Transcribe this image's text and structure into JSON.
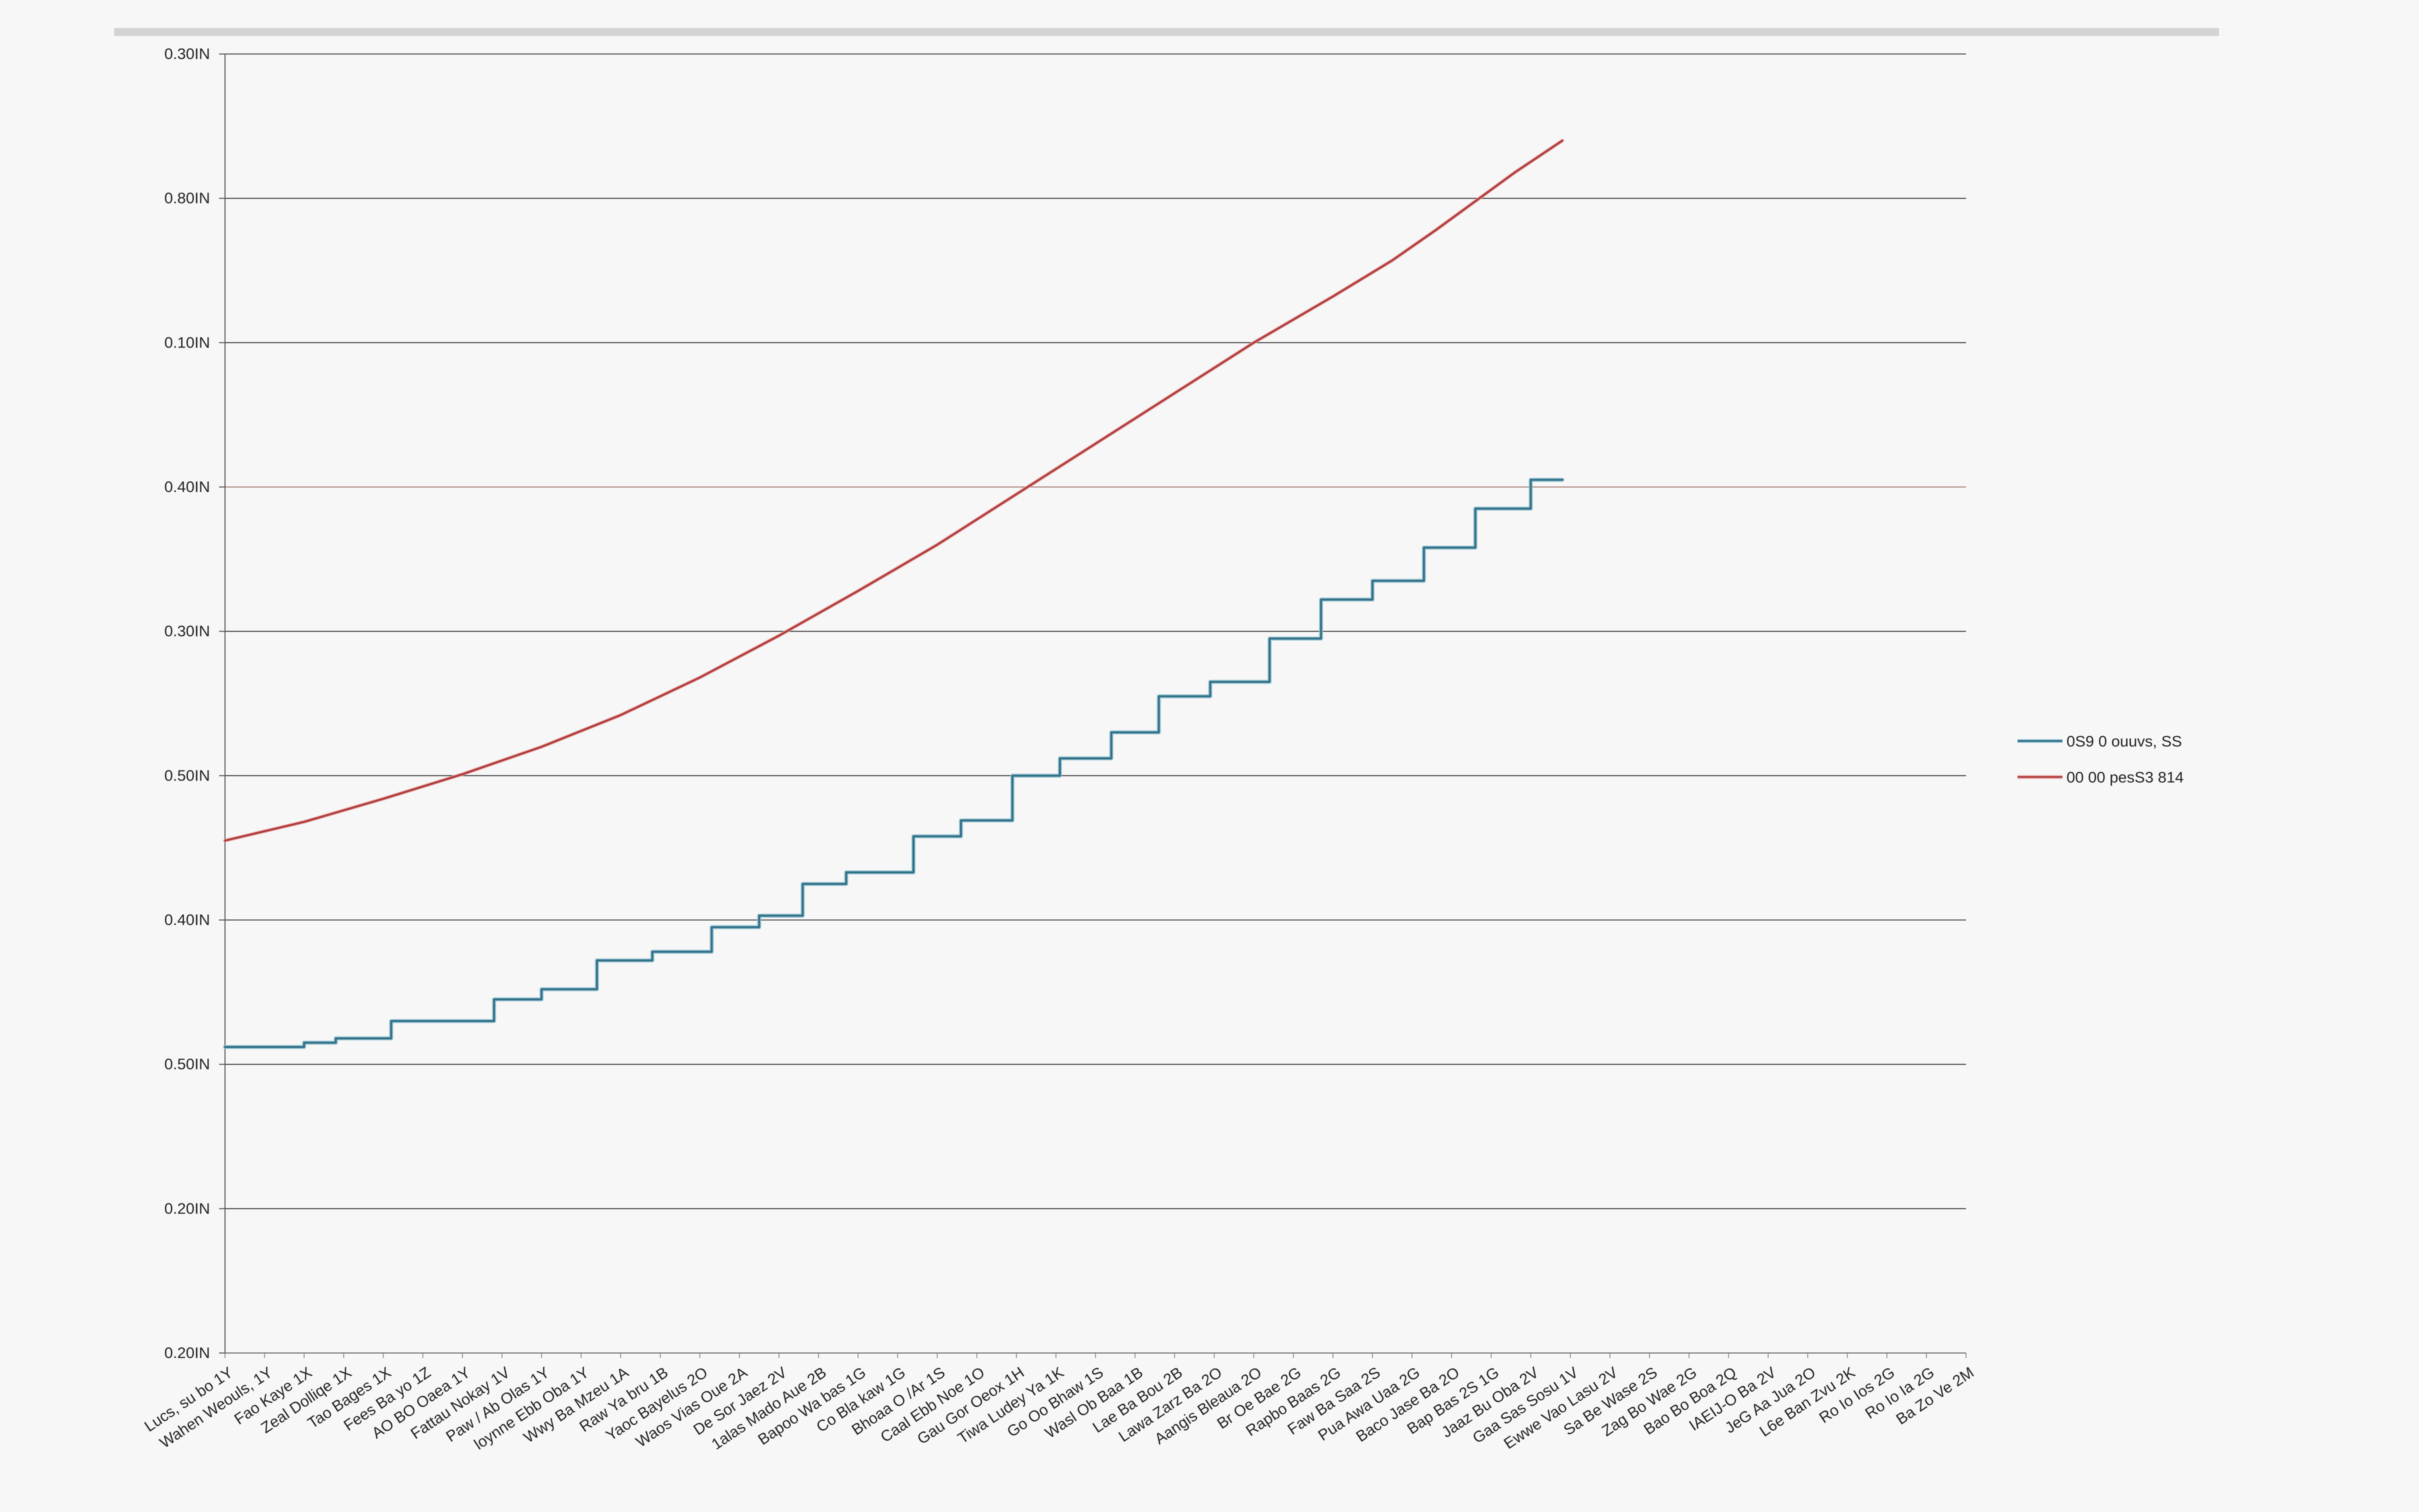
{
  "chart_data": {
    "type": "line",
    "title": "",
    "xlabel": "",
    "ylabel": "",
    "grid": true,
    "legend_position": "right",
    "y_tick_labels": [
      "0.30IN",
      "0.80IN",
      "0.10IN",
      "0.40IN",
      "0.30IN",
      "0.50IN",
      "0.40IN",
      "0.50IN",
      "0.20IN",
      "0.20IN"
    ],
    "x_tick_labels": [
      "Lucs, su bo 1Y",
      "Wahen Weouls, 1Y",
      "Fao Kaye 1X",
      "Zeal Dolliqe 1X",
      "Tao Bages 1X",
      "Fees Ba yo 1Z",
      "AO BO Oaea 1Y",
      "Fattau Nokay 1V",
      "Paw / Ab Olas 1Y",
      "loynne Ebb Oba 1Y",
      "Wwy Ba Mzeu 1A",
      "Raw Ya bru 1B",
      "Yaoc Bayelus 2O",
      "Waos Vias Oue 2A",
      "De Sor Jaez 2V",
      "1alas Mado Aue 2B",
      "Bapoo Wa bas 1G",
      "Co Bla kaw 1G",
      "Bhoaa O /Ar 1S",
      "Caal Ebb Noe 1O",
      "Gau Gor Oeox 1H",
      "Tiwa Ludey Ya 1K",
      "Go Oo Bhaw 1S",
      "Wasl Ob Baa 1B",
      "Lae Ba Bou 2B",
      "Lawa Zarz Ba 2O",
      "Aangis Bleaua 2O",
      "Br Oe Bae 2G",
      "Rapbo Baas 2G",
      "Faw Ba Saa 2S",
      "Pua Awa Uaa 2G",
      "Baco Jase Ba 2O",
      "Bap Bas 2S 1G",
      "Jaaz Bu Oba 2V",
      "Gaa Sas Sosu 1V",
      "Ewwe Vao Lasu 2V",
      "Sa Be Wase 2S",
      "Zag Bo Wae 2G",
      "Bao Bo Boa 2Q",
      "IAEIJ-O Ba 2V",
      "JeG Aa Jua 2O",
      "L6e Ban Zvu 2K",
      "Ro Io Ios 2G",
      "Ro Io Ia 2G",
      "Ba Zo Ve 2M"
    ],
    "y_range": [
      0,
      9
    ],
    "x_range": [
      0,
      44
    ],
    "series": [
      {
        "name": "0S9 0 ouuvs, SS",
        "color": "#2f6f86",
        "shadow_color": "#8fc0cf",
        "style": "step",
        "points": [
          [
            0,
            2.12
          ],
          [
            2.0,
            2.15
          ],
          [
            2.8,
            2.18
          ],
          [
            4.2,
            2.3
          ],
          [
            6.8,
            2.45
          ],
          [
            8.0,
            2.52
          ],
          [
            9.4,
            2.72
          ],
          [
            10.8,
            2.78
          ],
          [
            12.3,
            2.95
          ],
          [
            13.5,
            3.03
          ],
          [
            14.6,
            3.25
          ],
          [
            15.7,
            3.33
          ],
          [
            17.4,
            3.58
          ],
          [
            18.6,
            3.69
          ],
          [
            19.9,
            4.0
          ],
          [
            21.1,
            4.12
          ],
          [
            22.4,
            4.3
          ],
          [
            23.6,
            4.55
          ],
          [
            24.9,
            4.65
          ],
          [
            26.4,
            4.95
          ],
          [
            27.7,
            5.22
          ],
          [
            29.0,
            5.35
          ],
          [
            30.3,
            5.58
          ],
          [
            31.6,
            5.85
          ],
          [
            33.0,
            6.05
          ]
        ],
        "end_x": 33.8
      },
      {
        "name": "00 00 pesS3 814",
        "color": "#b03a3a",
        "shadow_color": "#e6a5a5",
        "style": "line",
        "points": [
          [
            0,
            3.55
          ],
          [
            2,
            3.68
          ],
          [
            4,
            3.84
          ],
          [
            6,
            4.01
          ],
          [
            8,
            4.2
          ],
          [
            10,
            4.42
          ],
          [
            12,
            4.68
          ],
          [
            14,
            4.97
          ],
          [
            16,
            5.28
          ],
          [
            18,
            5.6
          ],
          [
            20,
            5.95
          ],
          [
            22,
            6.3
          ],
          [
            24,
            6.65
          ],
          [
            26,
            7.0
          ],
          [
            28,
            7.32
          ],
          [
            29.5,
            7.57
          ],
          [
            30.6,
            7.78
          ],
          [
            31.6,
            7.98
          ],
          [
            32.6,
            8.18
          ],
          [
            33.8,
            8.4
          ]
        ]
      }
    ]
  }
}
